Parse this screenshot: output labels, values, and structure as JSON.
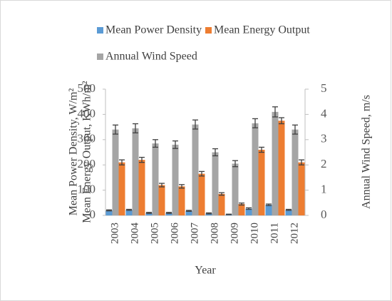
{
  "chart_data": {
    "type": "bar",
    "categories": [
      "2003",
      "2004",
      "2005",
      "2006",
      "2007",
      "2008",
      "2009",
      "2010",
      "2011",
      "2012"
    ],
    "x_label": "Year",
    "y_label": [
      "Mean Power Density,  W/m²",
      "Mean Energy Output, KWh/m²"
    ],
    "y2_label": "Annual Wind Speed, m/s",
    "series": [
      {
        "name": "Mean Power Density",
        "color": "#5b9bd5",
        "values": [
          20,
          22,
          10,
          10,
          18,
          8,
          4,
          27,
          42,
          22
        ],
        "errors": [
          2,
          2,
          2,
          2,
          2,
          2,
          1,
          3,
          3,
          2
        ]
      },
      {
        "name": "Mean Energy Output",
        "color": "#ed7d31",
        "values": [
          210,
          220,
          120,
          115,
          165,
          85,
          45,
          260,
          375,
          210
        ],
        "errors": [
          10,
          10,
          7,
          7,
          9,
          5,
          4,
          10,
          12,
          10
        ]
      },
      {
        "name": "Annual Wind Speed",
        "color": "#a5a5a5",
        "axis": "y2",
        "values": [
          3.4,
          3.45,
          2.85,
          2.8,
          3.6,
          2.5,
          2.05,
          3.65,
          4.1,
          3.4
        ],
        "errors": [
          0.18,
          0.18,
          0.15,
          0.15,
          0.18,
          0.14,
          0.12,
          0.18,
          0.2,
          0.18
        ]
      }
    ],
    "ylim": [
      0,
      500
    ],
    "yticks": [
      0,
      100,
      200,
      300,
      400,
      500
    ],
    "y2lim": [
      0,
      5
    ],
    "y2ticks": [
      0,
      1,
      2,
      3,
      4,
      5
    ],
    "grid": false
  }
}
